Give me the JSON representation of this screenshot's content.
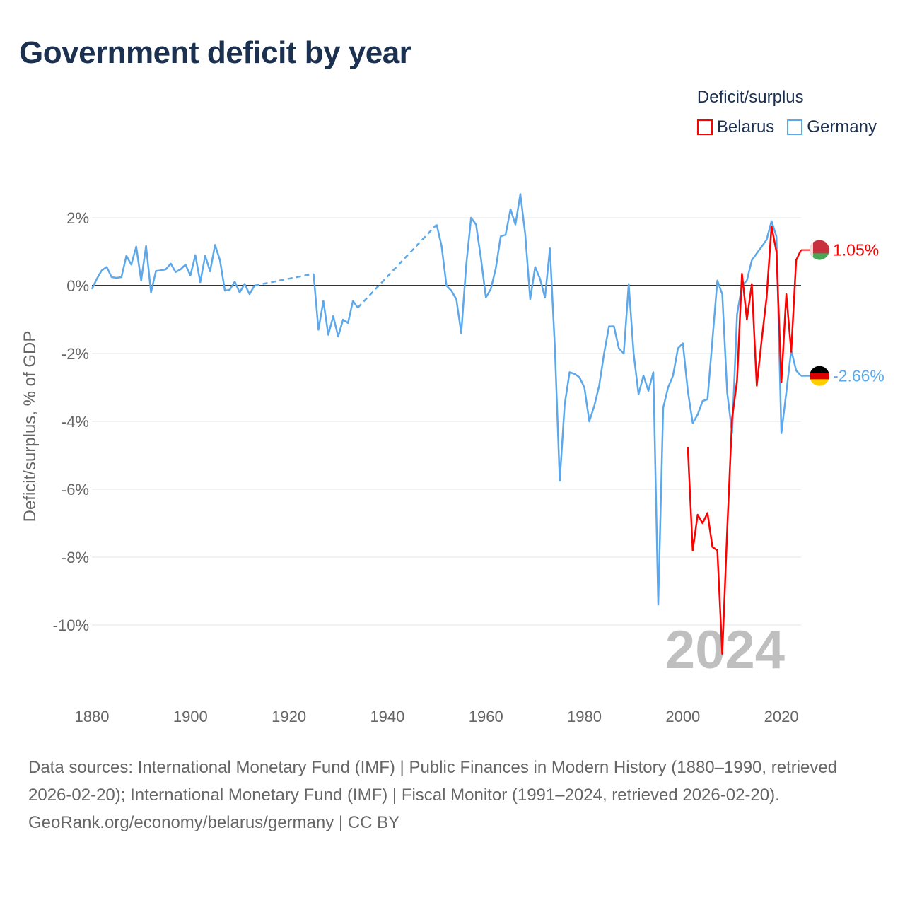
{
  "title": "Government deficit by year",
  "legend": {
    "title": "Deficit/surplus",
    "items": [
      {
        "label": "Belarus",
        "color": "#ff0000"
      },
      {
        "label": "Germany",
        "color": "#5ca8ea"
      }
    ]
  },
  "chart_data": {
    "type": "line",
    "title": "Government deficit by year",
    "xlabel": "",
    "ylabel": "Deficit/surplus, % of GDP",
    "xlim": [
      1880,
      2024
    ],
    "ylim": [
      -12,
      3
    ],
    "x_ticks": [
      1880,
      1900,
      1920,
      1940,
      1960,
      1980,
      2000,
      2020
    ],
    "x_tick_labels": [
      "1880",
      "1900",
      "1920",
      "1940",
      "1960",
      "1980",
      "2000",
      "2020"
    ],
    "y_ticks": [
      2,
      0,
      -2,
      -4,
      -6,
      -8,
      -10
    ],
    "y_tick_labels": [
      "2%",
      "0%",
      "-2%",
      "-4%",
      "-6%",
      "-8%",
      "-10%"
    ],
    "grid": true,
    "legend_position": "top-right",
    "current_year_label": "2024",
    "series": [
      {
        "name": "Germany",
        "color": "#5ca8ea",
        "end_label": "-2.66%",
        "points": [
          [
            1880,
            -0.1
          ],
          [
            1881,
            0.2
          ],
          [
            1882,
            0.45
          ],
          [
            1883,
            0.55
          ],
          [
            1884,
            0.25
          ],
          [
            1885,
            0.23
          ],
          [
            1886,
            0.25
          ],
          [
            1887,
            0.88
          ],
          [
            1888,
            0.62
          ],
          [
            1889,
            1.15
          ],
          [
            1890,
            0.15
          ],
          [
            1891,
            1.17
          ],
          [
            1892,
            -0.2
          ],
          [
            1893,
            0.43
          ],
          [
            1894,
            0.45
          ],
          [
            1895,
            0.48
          ],
          [
            1896,
            0.65
          ],
          [
            1897,
            0.4
          ],
          [
            1898,
            0.48
          ],
          [
            1899,
            0.62
          ],
          [
            1900,
            0.3
          ],
          [
            1901,
            0.9
          ],
          [
            1902,
            0.1
          ],
          [
            1903,
            0.88
          ],
          [
            1904,
            0.42
          ],
          [
            1905,
            1.2
          ],
          [
            1906,
            0.75
          ],
          [
            1907,
            -0.15
          ],
          [
            1908,
            -0.12
          ],
          [
            1909,
            0.12
          ],
          [
            1910,
            -0.2
          ],
          [
            1911,
            0.05
          ],
          [
            1912,
            -0.25
          ],
          [
            1913,
            0.0
          ],
          [
            1925,
            0.35
          ],
          [
            1926,
            -1.3
          ],
          [
            1927,
            -0.45
          ],
          [
            1928,
            -1.45
          ],
          [
            1929,
            -0.9
          ],
          [
            1930,
            -1.5
          ],
          [
            1931,
            -1.0
          ],
          [
            1932,
            -1.1
          ],
          [
            1933,
            -0.45
          ],
          [
            1934,
            -0.65
          ],
          [
            1950,
            1.8
          ],
          [
            1951,
            1.17
          ],
          [
            1952,
            0.0
          ],
          [
            1953,
            -0.15
          ],
          [
            1954,
            -0.4
          ],
          [
            1955,
            -1.4
          ],
          [
            1956,
            0.6
          ],
          [
            1957,
            2.0
          ],
          [
            1958,
            1.8
          ],
          [
            1959,
            0.8
          ],
          [
            1960,
            -0.35
          ],
          [
            1961,
            -0.1
          ],
          [
            1962,
            0.5
          ],
          [
            1963,
            1.45
          ],
          [
            1964,
            1.5
          ],
          [
            1965,
            2.25
          ],
          [
            1966,
            1.8
          ],
          [
            1967,
            2.7
          ],
          [
            1968,
            1.5
          ],
          [
            1969,
            -0.4
          ],
          [
            1970,
            0.55
          ],
          [
            1971,
            0.2
          ],
          [
            1972,
            -0.35
          ],
          [
            1973,
            1.1
          ],
          [
            1974,
            -1.8
          ],
          [
            1975,
            -5.75
          ],
          [
            1976,
            -3.5
          ],
          [
            1977,
            -2.55
          ],
          [
            1978,
            -2.6
          ],
          [
            1979,
            -2.7
          ],
          [
            1980,
            -3.0
          ],
          [
            1981,
            -4.0
          ],
          [
            1982,
            -3.55
          ],
          [
            1983,
            -2.95
          ],
          [
            1984,
            -2.0
          ],
          [
            1985,
            -1.2
          ],
          [
            1986,
            -1.2
          ],
          [
            1987,
            -1.85
          ],
          [
            1988,
            -2.0
          ],
          [
            1989,
            0.05
          ],
          [
            1990,
            -2.0
          ],
          [
            1991,
            -3.2
          ],
          [
            1992,
            -2.65
          ],
          [
            1993,
            -3.1
          ],
          [
            1994,
            -2.55
          ],
          [
            1995,
            -9.4
          ],
          [
            1996,
            -3.6
          ],
          [
            1997,
            -3.0
          ],
          [
            1998,
            -2.65
          ],
          [
            1999,
            -1.85
          ],
          [
            2000,
            -1.7
          ],
          [
            2001,
            -3.1
          ],
          [
            2002,
            -4.05
          ],
          [
            2003,
            -3.8
          ],
          [
            2004,
            -3.4
          ],
          [
            2005,
            -3.35
          ],
          [
            2006,
            -1.6
          ],
          [
            2007,
            0.15
          ],
          [
            2008,
            -0.25
          ],
          [
            2009,
            -3.15
          ],
          [
            2010,
            -4.35
          ],
          [
            2011,
            -0.85
          ],
          [
            2012,
            0.0
          ],
          [
            2013,
            0.15
          ],
          [
            2014,
            0.75
          ],
          [
            2015,
            0.95
          ],
          [
            2016,
            1.15
          ],
          [
            2017,
            1.35
          ],
          [
            2018,
            1.9
          ],
          [
            2019,
            1.45
          ],
          [
            2020,
            -4.35
          ],
          [
            2021,
            -3.15
          ],
          [
            2022,
            -1.9
          ],
          [
            2023,
            -2.5
          ],
          [
            2024,
            -2.66
          ]
        ]
      },
      {
        "name": "Belarus",
        "color": "#ff0000",
        "end_label": "1.05%",
        "points": [
          [
            2001,
            -4.75
          ],
          [
            2002,
            -7.8
          ],
          [
            2003,
            -6.75
          ],
          [
            2004,
            -7.0
          ],
          [
            2005,
            -6.7
          ],
          [
            2006,
            -7.7
          ],
          [
            2007,
            -7.8
          ],
          [
            2008,
            -10.85
          ],
          [
            2009,
            -7.2
          ],
          [
            2010,
            -3.9
          ],
          [
            2011,
            -2.8
          ],
          [
            2012,
            0.35
          ],
          [
            2013,
            -1.0
          ],
          [
            2014,
            0.05
          ],
          [
            2015,
            -2.95
          ],
          [
            2016,
            -1.6
          ],
          [
            2017,
            -0.35
          ],
          [
            2018,
            1.75
          ],
          [
            2019,
            1.0
          ],
          [
            2020,
            -2.85
          ],
          [
            2021,
            -0.25
          ],
          [
            2022,
            -1.95
          ],
          [
            2023,
            0.75
          ],
          [
            2024,
            1.05
          ]
        ]
      }
    ]
  },
  "footer": {
    "sources": "Data sources: International Monetary Fund (IMF) | Public Finances in Modern History (1880–1990, retrieved 2026-02-20); International Monetary Fund (IMF) | Fiscal Monitor (1991–2024, retrieved 2026-02-20).",
    "credit": "GeoRank.org/economy/belarus/germany | CC BY"
  }
}
